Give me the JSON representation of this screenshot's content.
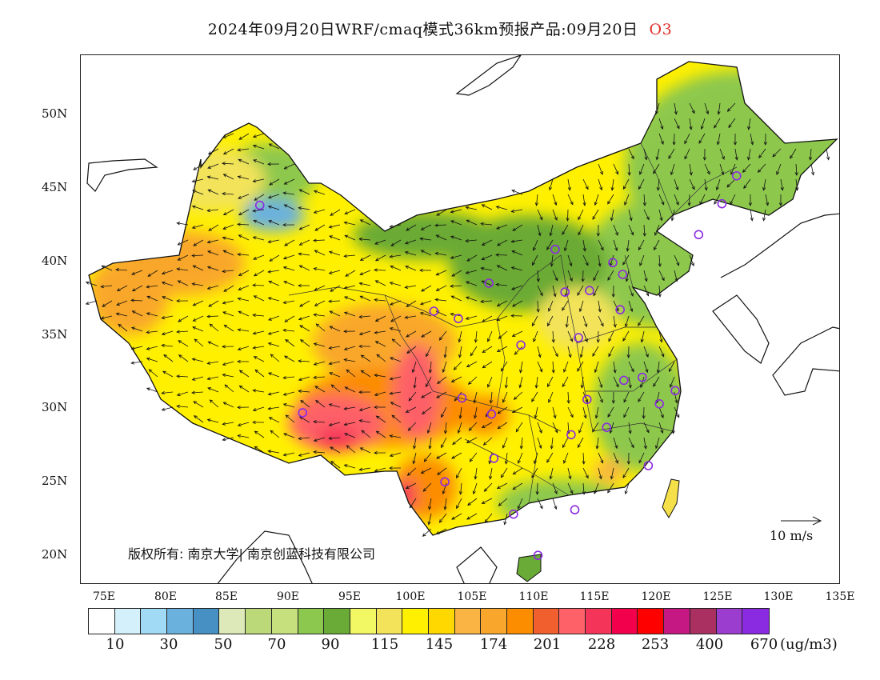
{
  "title": {
    "main": "2024年09月20日WRF/cmaq模式36km预报产品:09月20日",
    "species": "O3"
  },
  "axes": {
    "lat_labels": [
      "50N",
      "45N",
      "40N",
      "35N",
      "30N",
      "25N",
      "20N"
    ],
    "lon_labels": [
      "75E",
      "80E",
      "85E",
      "90E",
      "95E",
      "100E",
      "105E",
      "110E",
      "115E",
      "120E",
      "125E",
      "130E",
      "135E"
    ]
  },
  "map_extent": {
    "lon_min": 73,
    "lon_max": 135,
    "lat_min": 18,
    "lat_max": 54
  },
  "copyright": "版权所有: 南京大学| 南京创蓝科技有限公司",
  "wind_reference": "10  m/s",
  "colorbar": {
    "colors": [
      "#ffffff",
      "#d4f0fb",
      "#a0daf5",
      "#6bb1de",
      "#4790c4",
      "#dde9b8",
      "#bcd97a",
      "#c6e07e",
      "#8dc84e",
      "#6aaa36",
      "#f2f764",
      "#f2e35a",
      "#fff000",
      "#ffd800",
      "#f9b443",
      "#f9a72c",
      "#fc8c00",
      "#f25f2e",
      "#fe6168",
      "#f5345a",
      "#f2004b",
      "#ff0000",
      "#c51882",
      "#a93060",
      "#9b3ed0",
      "#8a2be2"
    ],
    "labels": [
      "10",
      "30",
      "50",
      "70",
      "90",
      "115",
      "145",
      "174",
      "201",
      "228",
      "253",
      "400",
      "670"
    ],
    "unit": "(ug/m3)"
  },
  "cities": [
    {
      "lon": 87.6,
      "lat": 43.8
    },
    {
      "lon": 126.5,
      "lat": 45.8
    },
    {
      "lon": 125.3,
      "lat": 43.9
    },
    {
      "lon": 123.4,
      "lat": 41.8
    },
    {
      "lon": 111.7,
      "lat": 40.8
    },
    {
      "lon": 116.4,
      "lat": 39.9
    },
    {
      "lon": 117.2,
      "lat": 39.1
    },
    {
      "lon": 106.3,
      "lat": 38.5
    },
    {
      "lon": 112.5,
      "lat": 37.9
    },
    {
      "lon": 114.5,
      "lat": 38.0
    },
    {
      "lon": 101.8,
      "lat": 36.6
    },
    {
      "lon": 103.8,
      "lat": 36.1
    },
    {
      "lon": 117.0,
      "lat": 36.7
    },
    {
      "lon": 108.9,
      "lat": 34.3
    },
    {
      "lon": 113.6,
      "lat": 34.8
    },
    {
      "lon": 118.8,
      "lat": 32.1
    },
    {
      "lon": 117.3,
      "lat": 31.9
    },
    {
      "lon": 121.5,
      "lat": 31.2
    },
    {
      "lon": 120.2,
      "lat": 30.3
    },
    {
      "lon": 104.1,
      "lat": 30.7
    },
    {
      "lon": 106.5,
      "lat": 29.6
    },
    {
      "lon": 114.3,
      "lat": 30.6
    },
    {
      "lon": 91.1,
      "lat": 29.7
    },
    {
      "lon": 115.9,
      "lat": 28.7
    },
    {
      "lon": 113.0,
      "lat": 28.2
    },
    {
      "lon": 106.7,
      "lat": 26.6
    },
    {
      "lon": 119.3,
      "lat": 26.1
    },
    {
      "lon": 102.7,
      "lat": 25.0
    },
    {
      "lon": 108.3,
      "lat": 22.8
    },
    {
      "lon": 113.3,
      "lat": 23.1
    },
    {
      "lon": 110.3,
      "lat": 20.0
    }
  ]
}
